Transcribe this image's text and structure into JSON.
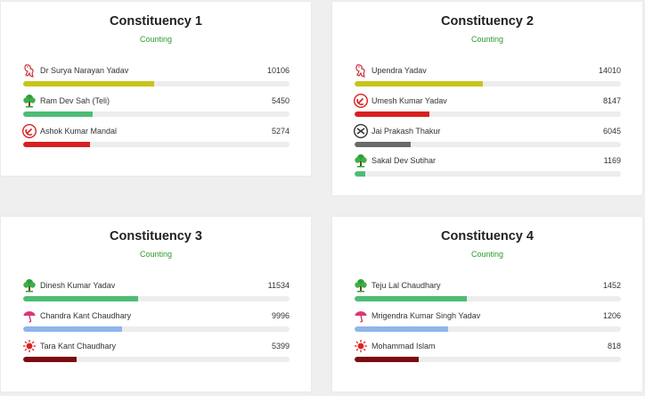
{
  "constituencies": [
    {
      "title": "Constituency 1",
      "status": "Counting",
      "candidates": [
        {
          "name": "Dr Surya Narayan Yadav",
          "votes": "10106",
          "share": 0.49,
          "color": "#c8c41c",
          "icon": "tiger-icon"
        },
        {
          "name": "Ram Dev Sah (Teli)",
          "votes": "5450",
          "share": 0.26,
          "color": "#4dbd74",
          "icon": "tree-icon"
        },
        {
          "name": "Ashok Kumar Mandal",
          "votes": "5274",
          "share": 0.25,
          "color": "#d82020",
          "icon": "sickle-icon"
        }
      ]
    },
    {
      "title": "Constituency 2",
      "status": "Counting",
      "candidates": [
        {
          "name": "Upendra Yadav",
          "votes": "14010",
          "share": 0.48,
          "color": "#c8c41c",
          "icon": "tiger-icon"
        },
        {
          "name": "Umesh Kumar Yadav",
          "votes": "8147",
          "share": 0.28,
          "color": "#d82020",
          "icon": "sickle-icon"
        },
        {
          "name": "Jai Prakash Thakur",
          "votes": "6045",
          "share": 0.21,
          "color": "#6a6a6a",
          "icon": "spiral-icon"
        },
        {
          "name": "Sakal Dev Sutihar",
          "votes": "1169",
          "share": 0.04,
          "color": "#4dbd74",
          "icon": "tree-icon"
        }
      ]
    },
    {
      "title": "Constituency 3",
      "status": "Counting",
      "candidates": [
        {
          "name": "Dinesh Kumar Yadav",
          "votes": "11534",
          "share": 0.43,
          "color": "#4dbd74",
          "icon": "tree-icon"
        },
        {
          "name": "Chandra Kant Chaudhary",
          "votes": "9996",
          "share": 0.37,
          "color": "#8fb5ea",
          "icon": "umbrella-icon"
        },
        {
          "name": "Tara Kant Chaudhary",
          "votes": "5399",
          "share": 0.2,
          "color": "#7b0d12",
          "icon": "sun-icon"
        }
      ]
    },
    {
      "title": "Constituency 4",
      "status": "Counting",
      "candidates": [
        {
          "name": "Teju Lal Chaudhary",
          "votes": "1452",
          "share": 0.42,
          "color": "#4dbd74",
          "icon": "tree-icon"
        },
        {
          "name": "Mrigendra Kumar Singh Yadav",
          "votes": "1206",
          "share": 0.35,
          "color": "#8fb5ea",
          "icon": "umbrella-icon"
        },
        {
          "name": "Mohammad Islam",
          "votes": "818",
          "share": 0.24,
          "color": "#7b0d12",
          "icon": "sun-icon"
        }
      ]
    }
  ]
}
